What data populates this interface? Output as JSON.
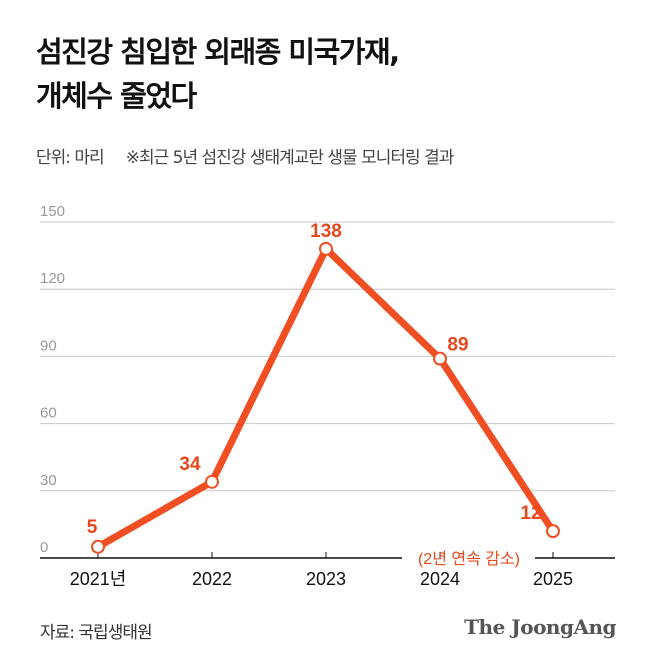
{
  "title_lines": [
    "섬진강 침입한 외래종 미국가재,",
    "개체수 줄었다"
  ],
  "unit": "단위: 마리",
  "note": "※최근 5년 섬진강 생태계교란 생물 모니터링 결과",
  "source": "자료: 국립생태원",
  "logo": "The JoongAng",
  "colors": {
    "line": "#f04e23",
    "label": "#e8481c",
    "grid": "#c8c8c8",
    "axis": "#111111"
  },
  "chart_data": {
    "type": "line",
    "categories": [
      "2021년",
      "2022",
      "2023",
      "2024",
      "2025"
    ],
    "values": [
      5,
      34,
      138,
      89,
      12
    ],
    "data_labels": [
      "5",
      "34",
      "138",
      "89",
      "12"
    ],
    "yticks": [
      "0",
      "30",
      "60",
      "90",
      "120",
      "150"
    ],
    "ylim": [
      0,
      150
    ],
    "grid": true,
    "annotation": "(2년 연속 감소)"
  }
}
